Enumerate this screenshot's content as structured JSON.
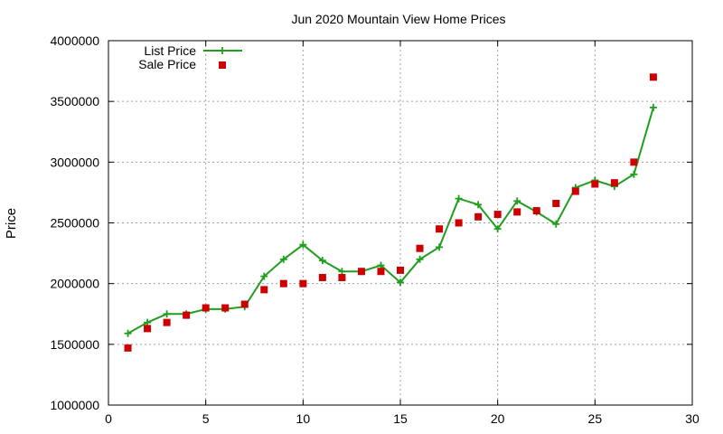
{
  "chart_data": {
    "type": "line",
    "title": "Jun 2020 Mountain View Home Prices",
    "xlabel": "",
    "ylabel": "Price",
    "xlim": [
      0,
      30
    ],
    "ylim": [
      1000000,
      4000000
    ],
    "x_ticks": [
      0,
      5,
      10,
      15,
      20,
      25,
      30
    ],
    "y_ticks": [
      1000000,
      1500000,
      2000000,
      2500000,
      3000000,
      3500000,
      4000000
    ],
    "grid": true,
    "legend_position": "top-left",
    "series": [
      {
        "name": "List Price",
        "style": "line-points",
        "marker": "plus",
        "color": "#1f9e1f",
        "x": [
          1,
          2,
          3,
          4,
          5,
          6,
          7,
          8,
          9,
          10,
          11,
          12,
          13,
          14,
          15,
          16,
          17,
          18,
          19,
          20,
          21,
          22,
          23,
          24,
          25,
          26,
          27,
          28
        ],
        "values": [
          1590000,
          1680000,
          1750000,
          1750000,
          1790000,
          1790000,
          1810000,
          2060000,
          2200000,
          2320000,
          2190000,
          2100000,
          2100000,
          2150000,
          2010000,
          2200000,
          2300000,
          2700000,
          2650000,
          2450000,
          2680000,
          2590000,
          2490000,
          2790000,
          2850000,
          2800000,
          2900000,
          3450000
        ]
      },
      {
        "name": "Sale Price",
        "style": "points",
        "marker": "square",
        "color": "#cc0000",
        "x": [
          1,
          2,
          3,
          4,
          5,
          6,
          7,
          8,
          9,
          10,
          11,
          12,
          13,
          14,
          15,
          16,
          17,
          18,
          19,
          20,
          21,
          22,
          23,
          24,
          25,
          26,
          27,
          28
        ],
        "values": [
          1470000,
          1630000,
          1680000,
          1740000,
          1800000,
          1800000,
          1830000,
          1950000,
          2000000,
          2000000,
          2050000,
          2050000,
          2100000,
          2100000,
          2110000,
          2290000,
          2450000,
          2500000,
          2550000,
          2570000,
          2590000,
          2600000,
          2660000,
          2760000,
          2820000,
          2830000,
          3000000,
          3700000
        ]
      }
    ]
  }
}
